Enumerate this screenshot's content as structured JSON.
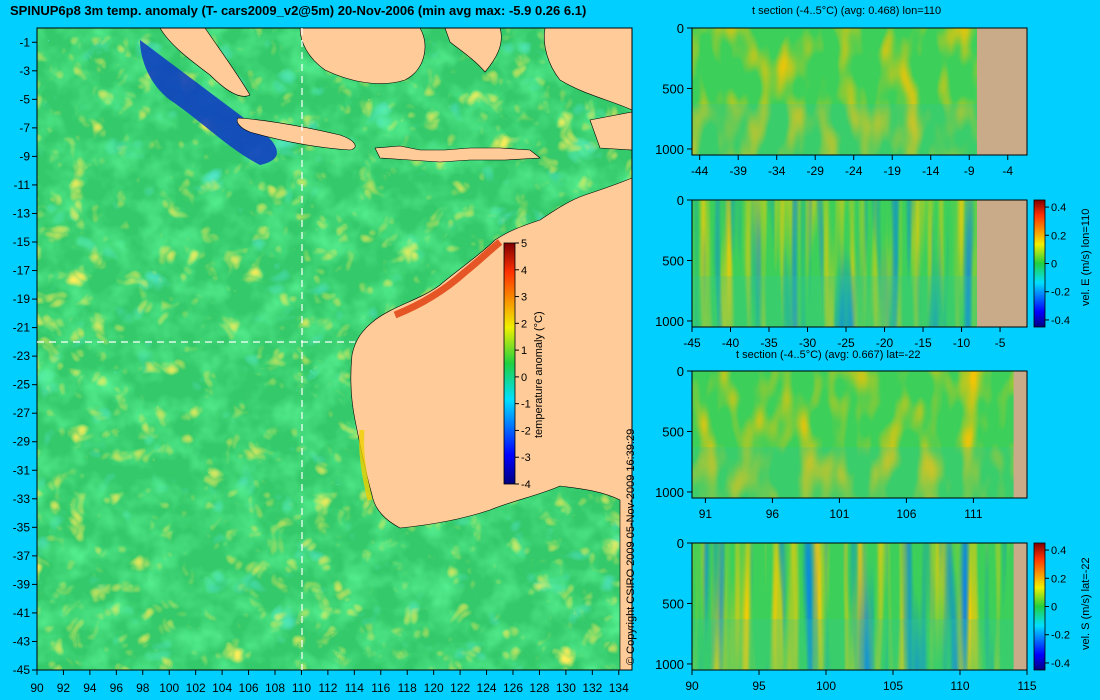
{
  "title": "SPINUP6p8 3m temp. anomaly (T- cars2009_v2@5m) 20-Nov-2006 (min avg max: -5.9 0.26 6.1)",
  "copyright": "© Copyright CSIRO 2009   05-Nov-2009 16:39:29",
  "colors": {
    "background": "#00cfff",
    "land": "#ffcc99",
    "section_land": "#c9ab8a"
  },
  "chart_data": [
    {
      "type": "heatmap",
      "panel": "map",
      "title": "SPINUP6p8 3m temp. anomaly (T- cars2009_v2@5m) 20-Nov-2006 (min avg max: -5.9 0.26 6.1)",
      "x_ticks": [
        "90",
        "92",
        "94",
        "96",
        "98",
        "100",
        "102",
        "104",
        "106",
        "108",
        "110",
        "112",
        "114",
        "116",
        "118",
        "120",
        "122",
        "124",
        "126",
        "128",
        "130",
        "132",
        "134"
      ],
      "y_ticks": [
        "-1",
        "-3",
        "-5",
        "-7",
        "-9",
        "-11",
        "-13",
        "-15",
        "-17",
        "-19",
        "-21",
        "-23",
        "-25",
        "-27",
        "-29",
        "-31",
        "-33",
        "-35",
        "-37",
        "-39",
        "-41",
        "-43",
        "-45"
      ],
      "xlim": [
        90,
        135
      ],
      "ylim": [
        -45,
        0
      ],
      "section_lines": {
        "lon": 110,
        "lat": -22
      },
      "colorbar": {
        "label": "temperature anomaly (°C)",
        "ticks": [
          "5",
          "4",
          "3",
          "2",
          "1",
          "0",
          "-1",
          "-2",
          "-3",
          "-4"
        ],
        "range": [
          -4,
          5
        ]
      },
      "stats": {
        "min": -5.9,
        "avg": 0.26,
        "max": 6.1
      }
    },
    {
      "type": "heatmap",
      "panel": "t-section-lon",
      "title": "t section (-4..5°C) (avg: 0.468) lon=110",
      "x_ticks": [
        "-44",
        "-39",
        "-34",
        "-29",
        "-24",
        "-19",
        "-14",
        "-9",
        "-4"
      ],
      "xlim": [
        -45,
        -1.5
      ],
      "y_ticks": [
        "0",
        "500",
        "1000"
      ],
      "ylim": [
        1050,
        0
      ],
      "land_from_x": -8
    },
    {
      "type": "heatmap",
      "panel": "vel-e-section",
      "title": "",
      "x_ticks": [
        "-45",
        "-40",
        "-35",
        "-30",
        "-25",
        "-20",
        "-15",
        "-10",
        "-5"
      ],
      "xlim": [
        -45,
        -1.5
      ],
      "y_ticks": [
        "0",
        "500",
        "1000"
      ],
      "ylim": [
        1050,
        0
      ],
      "land_from_x": -8,
      "colorbar": {
        "label": "vel. E (m/s) lon=110",
        "ticks": [
          "0.4",
          "0.2",
          "0",
          "-0.2",
          "-0.4"
        ],
        "range": [
          -0.45,
          0.45
        ]
      }
    },
    {
      "type": "heatmap",
      "panel": "t-section-lat",
      "title": "t section (-4..5°C) (avg: 0.667) lat=-22",
      "x_ticks": [
        "91",
        "96",
        "101",
        "106",
        "111"
      ],
      "xlim": [
        90,
        115
      ],
      "y_ticks": [
        "0",
        "500",
        "1000"
      ],
      "ylim": [
        1050,
        0
      ],
      "land_from_x": 114
    },
    {
      "type": "heatmap",
      "panel": "vel-s-section",
      "title": "",
      "x_ticks": [
        "90",
        "95",
        "100",
        "105",
        "110",
        "115"
      ],
      "xlim": [
        90,
        115
      ],
      "y_ticks": [
        "0",
        "500",
        "1000"
      ],
      "ylim": [
        1050,
        0
      ],
      "land_from_x": 114,
      "colorbar": {
        "label": "vel. S (m/s) lat=-22",
        "ticks": [
          "0.4",
          "0.2",
          "0",
          "-0.2",
          "-0.4"
        ],
        "range": [
          -0.45,
          0.45
        ]
      }
    }
  ]
}
